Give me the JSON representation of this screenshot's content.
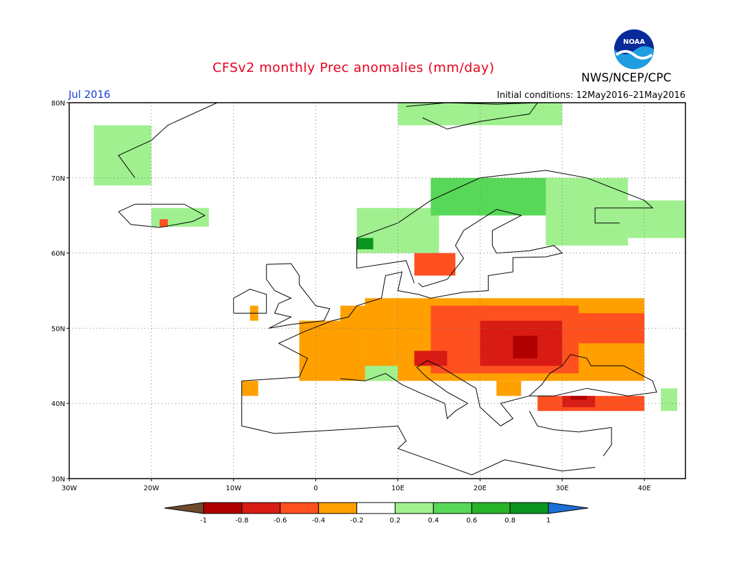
{
  "title": "CFSv2 monthly Prec anomalies (mm/day)",
  "agency": "NWS/NCEP/CPC",
  "logo_text": "NOAA",
  "month": "Jul 2016",
  "initial_conditions": "Initial conditions: 12May2016–21May2016",
  "map": {
    "projection": "lat-lon",
    "lon_range": [
      -30,
      45
    ],
    "lat_range": [
      30,
      80
    ],
    "lat_ticks": [
      "30N",
      "40N",
      "50N",
      "60N",
      "70N",
      "80N"
    ],
    "lon_ticks": [
      "30W",
      "20W",
      "10W",
      "0",
      "10E",
      "20E",
      "30E",
      "40E"
    ],
    "grid": "dotted",
    "anomaly_regions": [
      {
        "label": "Greenland east coast",
        "lon": [
          -27,
          -20
        ],
        "lat": [
          69,
          77
        ],
        "cls": 6
      },
      {
        "label": "Svalbard",
        "lon": [
          10,
          30
        ],
        "lat": [
          77,
          80
        ],
        "cls": 6
      },
      {
        "label": "Iceland",
        "lon": [
          -20,
          -13
        ],
        "lat": [
          63.5,
          66
        ],
        "cls": 6
      },
      {
        "label": "Iceland south",
        "lon": [
          -19,
          -18
        ],
        "lat": [
          63.5,
          64.5
        ],
        "cls": 3
      },
      {
        "label": "Norway coast",
        "lon": [
          5,
          15
        ],
        "lat": [
          60,
          66
        ],
        "cls": 6
      },
      {
        "label": "Norway-Sweden north",
        "lon": [
          14,
          30
        ],
        "lat": [
          65,
          70
        ],
        "cls": 7
      },
      {
        "label": "Finland-Karelia",
        "lon": [
          28,
          38
        ],
        "lat": [
          61,
          70
        ],
        "cls": 6
      },
      {
        "label": "Kola-NW Russia",
        "lon": [
          38,
          45
        ],
        "lat": [
          62,
          67
        ],
        "cls": 6
      },
      {
        "label": "Western Norway wet",
        "lon": [
          5,
          7
        ],
        "lat": [
          60.5,
          62
        ],
        "cls": 9
      },
      {
        "label": "Southern Sweden",
        "lon": [
          12,
          17
        ],
        "lat": [
          57,
          60
        ],
        "cls": 3
      },
      {
        "label": "Ireland",
        "lon": [
          -8,
          -7
        ],
        "lat": [
          51,
          53
        ],
        "cls": 4
      },
      {
        "label": "Benelux-N Germany",
        "lon": [
          3,
          15
        ],
        "lat": [
          50,
          53
        ],
        "cls": 4
      },
      {
        "label": "France",
        "lon": [
          -2,
          6
        ],
        "lat": [
          43,
          51
        ],
        "cls": 4
      },
      {
        "label": "Iberia north",
        "lon": [
          -9,
          -7
        ],
        "lat": [
          41,
          43
        ],
        "cls": 4
      },
      {
        "label": "Central Europe",
        "lon": [
          6,
          40
        ],
        "lat": [
          43,
          54
        ],
        "cls": 4
      },
      {
        "label": "Poland-Ukraine",
        "lon": [
          14,
          32
        ],
        "lat": [
          44,
          53
        ],
        "cls": 3
      },
      {
        "label": "Carpathians core",
        "lon": [
          20,
          30
        ],
        "lat": [
          45,
          51
        ],
        "cls": 2
      },
      {
        "label": "Romania extreme",
        "lon": [
          24,
          27
        ],
        "lat": [
          46,
          49
        ],
        "cls": 1
      },
      {
        "label": "Alps",
        "lon": [
          12,
          16
        ],
        "lat": [
          45,
          47
        ],
        "cls": 2
      },
      {
        "label": "Russia south",
        "lon": [
          30,
          40
        ],
        "lat": [
          48,
          52
        ],
        "cls": 3
      },
      {
        "label": "Turkey north",
        "lon": [
          27,
          40
        ],
        "lat": [
          39,
          41
        ],
        "cls": 3
      },
      {
        "label": "Turkey core",
        "lon": [
          30,
          34
        ],
        "lat": [
          39.5,
          41
        ],
        "cls": 2
      },
      {
        "label": "Turkey extreme",
        "lon": [
          31,
          33
        ],
        "lat": [
          40.5,
          41
        ],
        "cls": 1
      },
      {
        "label": "Balkans",
        "lon": [
          22,
          25
        ],
        "lat": [
          41,
          43
        ],
        "cls": 4
      },
      {
        "label": "Adriatic",
        "lon": [
          6,
          10
        ],
        "lat": [
          43,
          45
        ],
        "cls": 6
      },
      {
        "label": "Caucasus",
        "lon": [
          42,
          44
        ],
        "lat": [
          39,
          42
        ],
        "cls": 6
      }
    ]
  },
  "colorbar": {
    "ticks": [
      "-1",
      "-0.8",
      "-0.6",
      "-0.4",
      "-0.2",
      "0.2",
      "0.4",
      "0.6",
      "0.8",
      "1"
    ],
    "colors": [
      "#6e4a2c",
      "#b00000",
      "#d81c14",
      "#ff5020",
      "#ffa000",
      "#ffffff",
      "#a0f090",
      "#58d858",
      "#28b428",
      "#0a961e",
      "#1e6ed8"
    ]
  }
}
